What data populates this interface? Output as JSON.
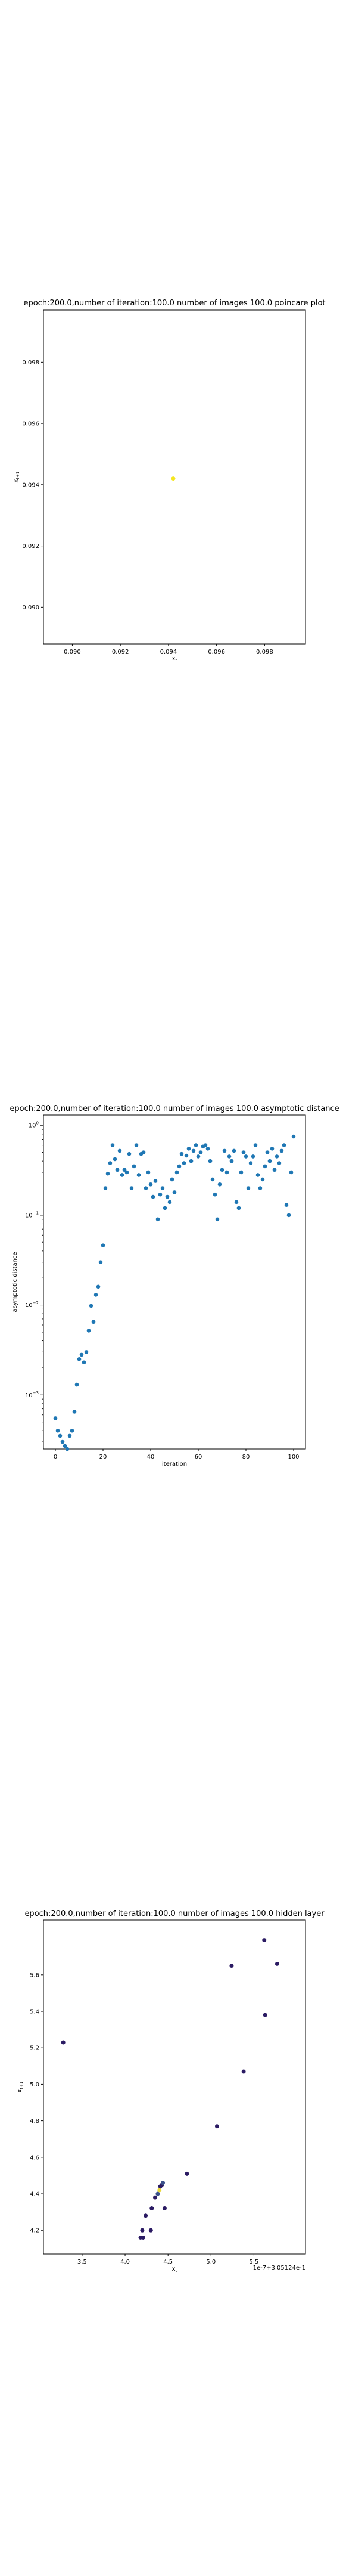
{
  "colors": {
    "axes": "#000000",
    "series_blue": "#1f77b4",
    "poincare_point": "#f5e61f",
    "hidden_dark": "#2b1b63",
    "hidden_mid": "#3b528b",
    "hidden_yellow": "#e9d83a"
  },
  "chart_data": [
    {
      "type": "scatter",
      "title": "epoch:200.0,number of iteration:100.0 number of images 100.0 poincare plot",
      "xlabel": "x_t",
      "ylabel": "x_{t+1}",
      "xlim": [
        0.0888,
        0.0997
      ],
      "ylim": [
        0.0888,
        0.0997
      ],
      "xticks": [
        "0.090",
        "0.092",
        "0.094",
        "0.096",
        "0.098"
      ],
      "yticks": [
        "0.090",
        "0.092",
        "0.094",
        "0.096",
        "0.098"
      ],
      "grid": false,
      "points": [
        {
          "x": 0.0942,
          "y": 0.0942
        }
      ]
    },
    {
      "type": "scatter",
      "title": "epoch:200.0,number of iteration:100.0  number of images 100.0 asymptotic distance",
      "xlabel": "iteration",
      "ylabel": "asymptotic distance",
      "yscale": "log",
      "xlim": [
        -5,
        105
      ],
      "ylim": [
        0.00025,
        1.3
      ],
      "xticks": [
        "0",
        "20",
        "40",
        "60",
        "80",
        "100"
      ],
      "yticks": [
        "10^{-3}",
        "10^{-2}",
        "10^{-1}",
        "10^{0}"
      ],
      "grid": false,
      "x": [
        0,
        1,
        2,
        3,
        4,
        5,
        6,
        7,
        8,
        9,
        10,
        11,
        12,
        13,
        14,
        15,
        16,
        17,
        18,
        19,
        20,
        21,
        22,
        23,
        24,
        25,
        26,
        27,
        28,
        29,
        30,
        31,
        32,
        33,
        34,
        35,
        36,
        37,
        38,
        39,
        40,
        41,
        42,
        43,
        44,
        45,
        46,
        47,
        48,
        49,
        50,
        51,
        52,
        53,
        54,
        55,
        56,
        57,
        58,
        59,
        60,
        61,
        62,
        63,
        64,
        65,
        66,
        67,
        68,
        69,
        70,
        71,
        72,
        73,
        74,
        75,
        76,
        77,
        78,
        79,
        80,
        81,
        82,
        83,
        84,
        85,
        86,
        87,
        88,
        89,
        90,
        91,
        92,
        93,
        94,
        95,
        96,
        97,
        98,
        99,
        100
      ],
      "y": [
        0.00055,
        0.0004,
        0.00035,
        0.0003,
        0.00027,
        0.00025,
        0.00035,
        0.0004,
        0.00065,
        0.0013,
        0.0025,
        0.0028,
        0.0023,
        0.003,
        0.0052,
        0.0098,
        0.0065,
        0.013,
        0.016,
        0.03,
        0.046,
        0.2,
        0.29,
        0.38,
        0.6,
        0.42,
        0.32,
        0.52,
        0.28,
        0.32,
        0.3,
        0.48,
        0.2,
        0.35,
        0.6,
        0.28,
        0.48,
        0.5,
        0.2,
        0.3,
        0.22,
        0.16,
        0.24,
        0.09,
        0.17,
        0.2,
        0.12,
        0.16,
        0.14,
        0.25,
        0.18,
        0.3,
        0.35,
        0.48,
        0.38,
        0.46,
        0.55,
        0.4,
        0.52,
        0.6,
        0.45,
        0.5,
        0.58,
        0.6,
        0.55,
        0.4,
        0.25,
        0.17,
        0.09,
        0.22,
        0.32,
        0.52,
        0.3,
        0.45,
        0.4,
        0.52,
        0.14,
        0.12,
        0.3,
        0.5,
        0.45,
        0.2,
        0.38,
        0.45,
        0.6,
        0.28,
        0.2,
        0.25,
        0.35,
        0.5,
        0.4,
        0.55,
        0.32,
        0.45,
        0.38,
        0.52,
        0.6,
        0.13,
        0.1,
        0.3,
        0.75
      ]
    },
    {
      "type": "scatter",
      "title": "epoch:200.0,number of iteration:100.0  number of images 100.0 hidden layer",
      "xlabel": "x_t",
      "ylabel": "x_{t+1}",
      "offset_label": "1e-7+3.05124e-1",
      "xlim": [
        3.05,
        6.1
      ],
      "ylim": [
        4.07,
        5.9
      ],
      "xticks": [
        "3.5",
        "4.0",
        "4.5",
        "5.0",
        "5.5"
      ],
      "yticks": [
        "4.2",
        "4.4",
        "4.6",
        "4.8",
        "5.0",
        "5.2",
        "5.4",
        "5.6"
      ],
      "grid": false,
      "points": [
        {
          "x": 3.28,
          "y": 5.23,
          "tone": "dark"
        },
        {
          "x": 4.18,
          "y": 4.16,
          "tone": "dark"
        },
        {
          "x": 4.21,
          "y": 4.16,
          "tone": "dark"
        },
        {
          "x": 4.2,
          "y": 4.2,
          "tone": "dark"
        },
        {
          "x": 4.24,
          "y": 4.28,
          "tone": "dark"
        },
        {
          "x": 4.3,
          "y": 4.2,
          "tone": "dark"
        },
        {
          "x": 4.31,
          "y": 4.32,
          "tone": "dark"
        },
        {
          "x": 4.35,
          "y": 4.38,
          "tone": "dark"
        },
        {
          "x": 4.38,
          "y": 4.4,
          "tone": "mid"
        },
        {
          "x": 4.4,
          "y": 4.42,
          "tone": "yellow"
        },
        {
          "x": 4.41,
          "y": 4.44,
          "tone": "dark"
        },
        {
          "x": 4.43,
          "y": 4.45,
          "tone": "dark"
        },
        {
          "x": 4.44,
          "y": 4.46,
          "tone": "mid"
        },
        {
          "x": 4.46,
          "y": 4.32,
          "tone": "dark"
        },
        {
          "x": 4.72,
          "y": 4.51,
          "tone": "dark"
        },
        {
          "x": 5.07,
          "y": 4.77,
          "tone": "dark"
        },
        {
          "x": 5.24,
          "y": 5.65,
          "tone": "dark"
        },
        {
          "x": 5.38,
          "y": 5.07,
          "tone": "dark"
        },
        {
          "x": 5.63,
          "y": 5.38,
          "tone": "dark"
        },
        {
          "x": 5.62,
          "y": 5.79,
          "tone": "dark"
        },
        {
          "x": 5.77,
          "y": 5.66,
          "tone": "dark"
        }
      ]
    }
  ]
}
